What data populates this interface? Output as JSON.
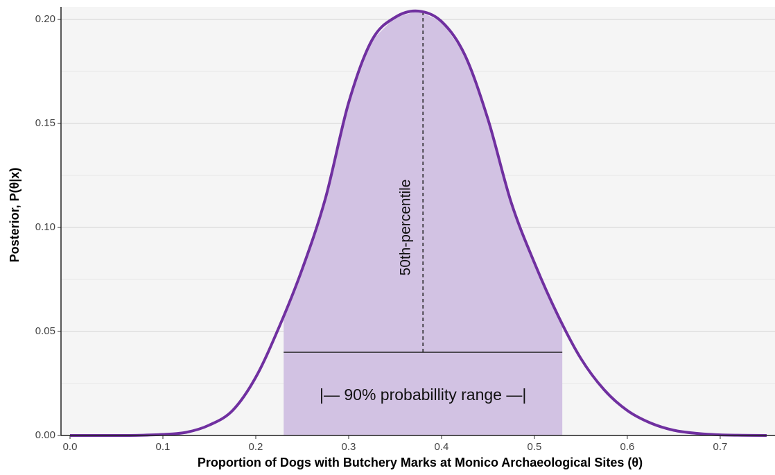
{
  "chart_data": {
    "type": "line",
    "x_label": "Proportion of Dogs with Butchery Marks at Monico Archaeological Sites (θ)",
    "y_label": "Posterior, P(θ|x)",
    "x": [
      0,
      0.025,
      0.05,
      0.075,
      0.1,
      0.125,
      0.15,
      0.175,
      0.2,
      0.225,
      0.25,
      0.275,
      0.3,
      0.325,
      0.35,
      0.375,
      0.4,
      0.425,
      0.45,
      0.475,
      0.5,
      0.525,
      0.55,
      0.575,
      0.6,
      0.625,
      0.65,
      0.675,
      0.7,
      0.725,
      0.75
    ],
    "series": [
      {
        "name": "Posterior",
        "color": "#7030a0",
        "values": [
          0,
          0,
          0,
          0.0001,
          0.0005,
          0.0015,
          0.005,
          0.012,
          0.028,
          0.052,
          0.08,
          0.114,
          0.16,
          0.19,
          0.201,
          0.204,
          0.199,
          0.183,
          0.152,
          0.112,
          0.083,
          0.058,
          0.037,
          0.022,
          0.012,
          0.006,
          0.0025,
          0.001,
          0.0003,
          0.0001,
          0
        ]
      }
    ],
    "interval": [
      0.23,
      0.53
    ],
    "interval_y": 0.04,
    "interval_color": "#d2c2e3",
    "median": 0.38,
    "median_label": "50th-percentile",
    "interval_label": "|— 90% probabillity range —|",
    "xlim": [
      -0.0097,
      0.759
    ],
    "ylim": [
      0,
      0.206
    ],
    "xticks": [
      {
        "value": 0,
        "label": "0.0"
      },
      0.1,
      0.2,
      0.3,
      0.4,
      0.5,
      0.6,
      0.7
    ],
    "yticks": [
      {
        "value": 0,
        "label": "0.00"
      },
      0.05,
      {
        "value": 0.1,
        "label": "0.10"
      },
      0.15,
      {
        "value": 0.2,
        "label": "0.20"
      }
    ],
    "minor_yticks": [
      0.025,
      0.075,
      0.125,
      0.175
    ],
    "grid": true
  }
}
